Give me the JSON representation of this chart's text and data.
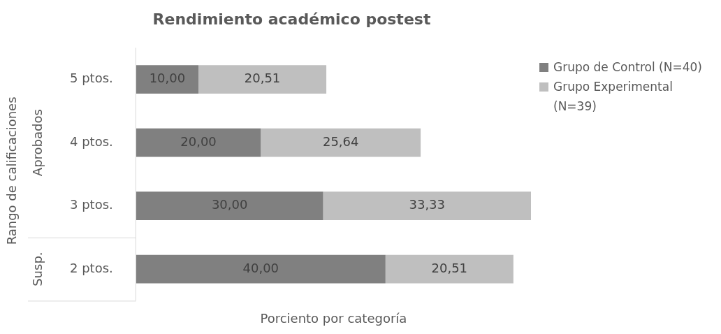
{
  "chart_data": {
    "type": "bar",
    "orientation": "horizontal",
    "stacked": true,
    "title": "Rendimiento académico postest",
    "xlabel": "Porciento por categoría",
    "ylabel": "Rango de calificaciones",
    "categories": [
      "5 ptos.",
      "4 ptos.",
      "3 ptos.",
      "2 ptos."
    ],
    "series": [
      {
        "name": "Grupo de Control (N=40)",
        "color": "#808080",
        "values": [
          10,
          20,
          30,
          40
        ],
        "value_labels": [
          "10,00",
          "20,00",
          "30,00",
          "40,00"
        ]
      },
      {
        "name": "Grupo Experimental (N=39)",
        "color": "#bfbfbf",
        "values": [
          20.51,
          25.64,
          33.33,
          20.51
        ],
        "value_labels": [
          "20,51",
          "25,64",
          "33,33",
          "20,51"
        ]
      }
    ],
    "annotations": [
      "Aprobados",
      "Susp."
    ],
    "legend": "right",
    "grid": false
  }
}
